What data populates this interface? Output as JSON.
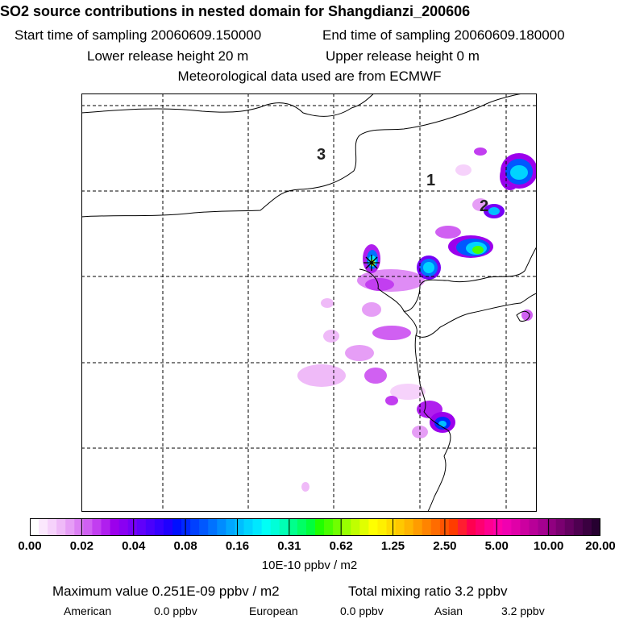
{
  "header": {
    "title": "SO2 source contributions in nested domain for Shangdianzi_200606",
    "start_time": "Start time of sampling 20060609.150000",
    "end_time": "End time of sampling 20060609.180000",
    "lower_height": "Lower release height   20 m",
    "upper_height": "Upper release height    0 m",
    "met_data": "Meteorological data used are from ECMWF"
  },
  "chart_data": {
    "type": "heatmap",
    "title": "SO2 source contributions in nested domain for Shangdianzi_200606",
    "colorbar_unit": "10E-10 ppbv / m2",
    "colorbar_ticks": [
      "0.00",
      "0.02",
      "0.04",
      "0.08",
      "0.16",
      "0.31",
      "0.62",
      "1.25",
      "2.50",
      "5.00",
      "10.00",
      "20.00"
    ],
    "colorbar_colors": [
      "#ffffff",
      "#fbe8fd",
      "#f6d2fb",
      "#efbaf8",
      "#e69ef6",
      "#dc80f4",
      "#d060f2",
      "#c23ef0",
      "#b01fee",
      "#9c00ec",
      "#8a00f2",
      "#7600f6",
      "#6000fa",
      "#4a00fc",
      "#3500ff",
      "#1f00ff",
      "#0010ff",
      "#0028ff",
      "#0040ff",
      "#0058ff",
      "#0072ff",
      "#008cff",
      "#00a6ff",
      "#00beff",
      "#00d4ff",
      "#00e8ff",
      "#00fff6",
      "#00ffd8",
      "#00ffb4",
      "#00ff8c",
      "#00ff64",
      "#00ff3c",
      "#20ff00",
      "#48ff00",
      "#70ff00",
      "#98ff00",
      "#c0ff00",
      "#e0ff00",
      "#ffff00",
      "#fff000",
      "#ffdc00",
      "#ffc800",
      "#ffb400",
      "#ff9c00",
      "#ff8400",
      "#ff6c00",
      "#ff5400",
      "#ff3c00",
      "#ff1e30",
      "#ff0050",
      "#ff0070",
      "#ff0090",
      "#ff00a8",
      "#f000b0",
      "#e000a8",
      "#cc00a0",
      "#b80098",
      "#a40090",
      "#900080",
      "#7a0070",
      "#640060",
      "#4e0050",
      "#3a0040",
      "#260030"
    ],
    "region_labels": [
      "3",
      "1",
      "2"
    ],
    "receptor_marker": "Shangdianzi",
    "plumes": [
      {
        "lon": 0.55,
        "lat": 0.37,
        "level": 0.3
      },
      {
        "lon": 0.61,
        "lat": 0.39,
        "level": 0.5
      },
      {
        "lon": 0.78,
        "lat": 0.29,
        "level": 0.9
      },
      {
        "lon": 0.87,
        "lat": 0.2,
        "level": 0.6
      },
      {
        "lon": 0.96,
        "lat": 0.16,
        "level": 0.45
      },
      {
        "lon": 0.64,
        "lat": 0.72,
        "level": 0.55
      }
    ]
  },
  "summary": {
    "max_value": "Maximum value  0.251E-09 ppbv / m2",
    "total_mixing": "Total mixing ratio       3.2 ppbv",
    "american_label": "American",
    "american_value": "0.0 ppbv",
    "european_label": "European",
    "european_value": "0.0 ppbv",
    "asian_label": "Asian",
    "asian_value": "3.2 ppbv"
  }
}
